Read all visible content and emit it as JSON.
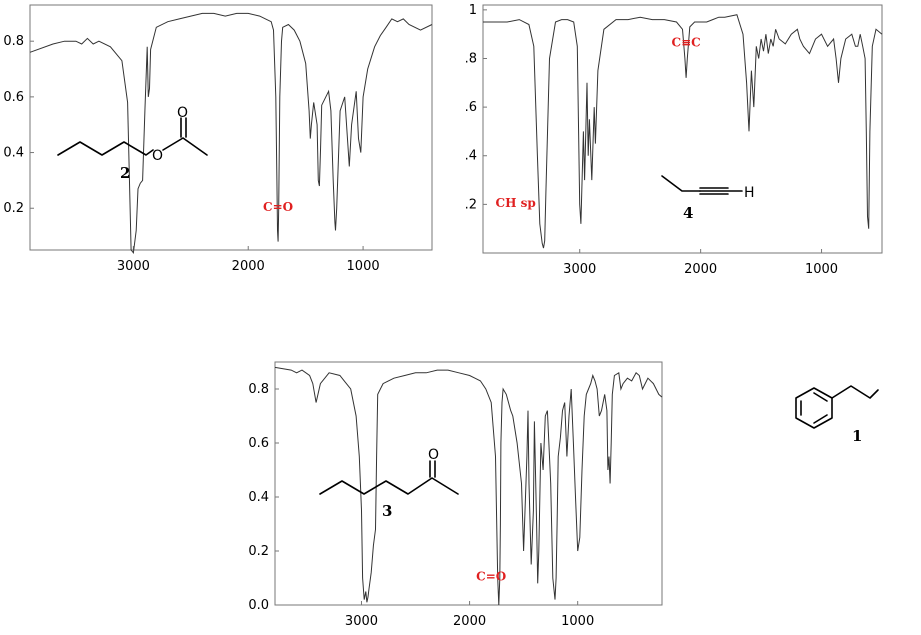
{
  "chart_data": [
    {
      "type": "line",
      "x_axis_direction": "decreasing",
      "xticks": [
        3000,
        2000,
        1000
      ],
      "yticks": [
        0.2,
        0.4,
        0.6,
        0.8
      ],
      "ytick_labels": [
        "0.2",
        "0.4",
        "0.6",
        "0.8"
      ],
      "xlim": [
        3900,
        400
      ],
      "ylim": [
        0.05,
        0.93
      ],
      "compound_label": "2",
      "molecule_atoms": [
        "O",
        "O"
      ],
      "annotations": [
        {
          "text": "C=O",
          "x": 1740,
          "y": 0.19
        }
      ],
      "x": [
        3900,
        3700,
        3600,
        3500,
        3450,
        3400,
        3350,
        3300,
        3200,
        3100,
        3050,
        3020,
        3000,
        2975,
        2960,
        2940,
        2920,
        2900,
        2880,
        2870,
        2860,
        2850,
        2800,
        2700,
        2600,
        2500,
        2400,
        2300,
        2200,
        2100,
        2000,
        1900,
        1850,
        1800,
        1780,
        1760,
        1750,
        1745,
        1740,
        1735,
        1725,
        1710,
        1700,
        1650,
        1600,
        1550,
        1500,
        1470,
        1460,
        1450,
        1430,
        1400,
        1390,
        1380,
        1370,
        1360,
        1300,
        1280,
        1260,
        1245,
        1240,
        1230,
        1200,
        1160,
        1120,
        1100,
        1060,
        1040,
        1020,
        1000,
        960,
        900,
        850,
        800,
        750,
        700,
        650,
        600,
        500,
        400
      ],
      "y": [
        0.76,
        0.79,
        0.8,
        0.8,
        0.79,
        0.81,
        0.79,
        0.8,
        0.78,
        0.73,
        0.58,
        0.05,
        0.04,
        0.12,
        0.27,
        0.29,
        0.3,
        0.55,
        0.78,
        0.6,
        0.63,
        0.77,
        0.85,
        0.87,
        0.88,
        0.89,
        0.9,
        0.9,
        0.89,
        0.9,
        0.9,
        0.89,
        0.88,
        0.87,
        0.84,
        0.6,
        0.3,
        0.12,
        0.08,
        0.2,
        0.6,
        0.8,
        0.85,
        0.86,
        0.84,
        0.8,
        0.72,
        0.55,
        0.45,
        0.5,
        0.58,
        0.5,
        0.3,
        0.28,
        0.42,
        0.57,
        0.62,
        0.55,
        0.3,
        0.15,
        0.12,
        0.2,
        0.55,
        0.6,
        0.35,
        0.5,
        0.62,
        0.45,
        0.4,
        0.6,
        0.7,
        0.78,
        0.82,
        0.85,
        0.88,
        0.87,
        0.88,
        0.86,
        0.84,
        0.86
      ]
    },
    {
      "type": "line",
      "x_axis_direction": "decreasing",
      "xticks": [
        3000,
        2000,
        1000
      ],
      "yticks": [
        0.2,
        0.4,
        0.6,
        0.8,
        1.0
      ],
      "ytick_labels": [
        ".2",
        ".4",
        ".6",
        ".8",
        "1"
      ],
      "xlim": [
        3800,
        500
      ],
      "ylim": [
        0.0,
        1.02
      ],
      "compound_label": "4",
      "molecule_atoms": [
        "H"
      ],
      "annotations": [
        {
          "text": "C≡C",
          "x": 2120,
          "y": 0.85
        },
        {
          "text": "CH sp",
          "x": 3530,
          "y": 0.19
        }
      ],
      "x": [
        3800,
        3600,
        3500,
        3420,
        3380,
        3350,
        3330,
        3310,
        3300,
        3290,
        3280,
        3250,
        3200,
        3150,
        3100,
        3050,
        3020,
        3000,
        2990,
        2970,
        2960,
        2940,
        2930,
        2920,
        2900,
        2880,
        2870,
        2850,
        2800,
        2700,
        2600,
        2500,
        2400,
        2300,
        2200,
        2150,
        2130,
        2120,
        2110,
        2090,
        2050,
        1950,
        1900,
        1850,
        1800,
        1700,
        1650,
        1620,
        1600,
        1580,
        1560,
        1540,
        1520,
        1500,
        1480,
        1460,
        1440,
        1420,
        1400,
        1380,
        1350,
        1300,
        1250,
        1200,
        1180,
        1150,
        1100,
        1050,
        1000,
        950,
        900,
        880,
        860,
        840,
        800,
        750,
        720,
        700,
        680,
        660,
        640,
        630,
        620,
        610,
        600,
        580,
        550,
        500
      ],
      "y": [
        0.95,
        0.95,
        0.96,
        0.94,
        0.85,
        0.4,
        0.12,
        0.04,
        0.02,
        0.05,
        0.25,
        0.8,
        0.95,
        0.96,
        0.96,
        0.95,
        0.85,
        0.2,
        0.12,
        0.5,
        0.3,
        0.7,
        0.4,
        0.55,
        0.3,
        0.6,
        0.45,
        0.75,
        0.92,
        0.96,
        0.96,
        0.97,
        0.96,
        0.96,
        0.95,
        0.92,
        0.8,
        0.72,
        0.8,
        0.93,
        0.95,
        0.95,
        0.96,
        0.97,
        0.97,
        0.98,
        0.9,
        0.7,
        0.5,
        0.75,
        0.6,
        0.85,
        0.8,
        0.88,
        0.83,
        0.9,
        0.82,
        0.88,
        0.85,
        0.92,
        0.88,
        0.86,
        0.9,
        0.92,
        0.88,
        0.85,
        0.82,
        0.88,
        0.9,
        0.85,
        0.88,
        0.8,
        0.7,
        0.8,
        0.88,
        0.9,
        0.85,
        0.85,
        0.9,
        0.85,
        0.8,
        0.5,
        0.15,
        0.1,
        0.5,
        0.85,
        0.92,
        0.9
      ]
    },
    {
      "type": "line",
      "x_axis_direction": "decreasing",
      "xticks": [
        3000,
        2000,
        1000
      ],
      "yticks": [
        0.0,
        0.2,
        0.4,
        0.6,
        0.8
      ],
      "ytick_labels": [
        "0.0",
        "0.2",
        "0.4",
        "0.6",
        "0.8"
      ],
      "xlim": [
        3800,
        220
      ],
      "ylim": [
        0.0,
        0.9
      ],
      "compound_label": "3",
      "molecule_atoms": [
        "O"
      ],
      "annotations": [
        {
          "text": "C=O",
          "x": 1800,
          "y": 0.09
        }
      ],
      "x": [
        3800,
        3650,
        3600,
        3550,
        3480,
        3450,
        3420,
        3380,
        3300,
        3200,
        3100,
        3050,
        3020,
        3000,
        2990,
        2975,
        2960,
        2950,
        2940,
        2930,
        2910,
        2890,
        2870,
        2860,
        2850,
        2800,
        2700,
        2600,
        2500,
        2400,
        2300,
        2200,
        2100,
        2000,
        1950,
        1900,
        1850,
        1800,
        1760,
        1740,
        1730,
        1720,
        1715,
        1710,
        1700,
        1690,
        1660,
        1620,
        1600,
        1560,
        1520,
        1500,
        1470,
        1460,
        1450,
        1430,
        1410,
        1400,
        1380,
        1370,
        1360,
        1340,
        1320,
        1300,
        1280,
        1250,
        1230,
        1210,
        1200,
        1190,
        1180,
        1160,
        1140,
        1120,
        1100,
        1080,
        1060,
        1040,
        1020,
        1000,
        980,
        960,
        940,
        920,
        900,
        880,
        860,
        840,
        820,
        800,
        780,
        750,
        730,
        720,
        710,
        700,
        690,
        680,
        660,
        620,
        600,
        580,
        540,
        500,
        460,
        430,
        400,
        350,
        300,
        250,
        220
      ],
      "y": [
        0.88,
        0.87,
        0.86,
        0.87,
        0.85,
        0.82,
        0.75,
        0.82,
        0.86,
        0.85,
        0.8,
        0.7,
        0.55,
        0.35,
        0.1,
        0.02,
        0.05,
        0.01,
        0.03,
        0.06,
        0.12,
        0.22,
        0.28,
        0.55,
        0.78,
        0.82,
        0.84,
        0.85,
        0.86,
        0.86,
        0.87,
        0.87,
        0.86,
        0.85,
        0.84,
        0.83,
        0.8,
        0.75,
        0.55,
        0.1,
        0.0,
        0.1,
        0.3,
        0.6,
        0.75,
        0.8,
        0.78,
        0.72,
        0.7,
        0.6,
        0.45,
        0.2,
        0.55,
        0.72,
        0.45,
        0.15,
        0.35,
        0.68,
        0.3,
        0.08,
        0.2,
        0.6,
        0.5,
        0.7,
        0.72,
        0.45,
        0.1,
        0.02,
        0.1,
        0.3,
        0.55,
        0.62,
        0.72,
        0.75,
        0.55,
        0.7,
        0.8,
        0.6,
        0.4,
        0.2,
        0.25,
        0.5,
        0.7,
        0.78,
        0.8,
        0.82,
        0.85,
        0.83,
        0.8,
        0.7,
        0.72,
        0.78,
        0.72,
        0.5,
        0.55,
        0.45,
        0.6,
        0.78,
        0.85,
        0.86,
        0.8,
        0.82,
        0.84,
        0.83,
        0.86,
        0.85,
        0.8,
        0.84,
        0.82,
        0.78,
        0.77
      ]
    }
  ],
  "benzene_label": "1"
}
